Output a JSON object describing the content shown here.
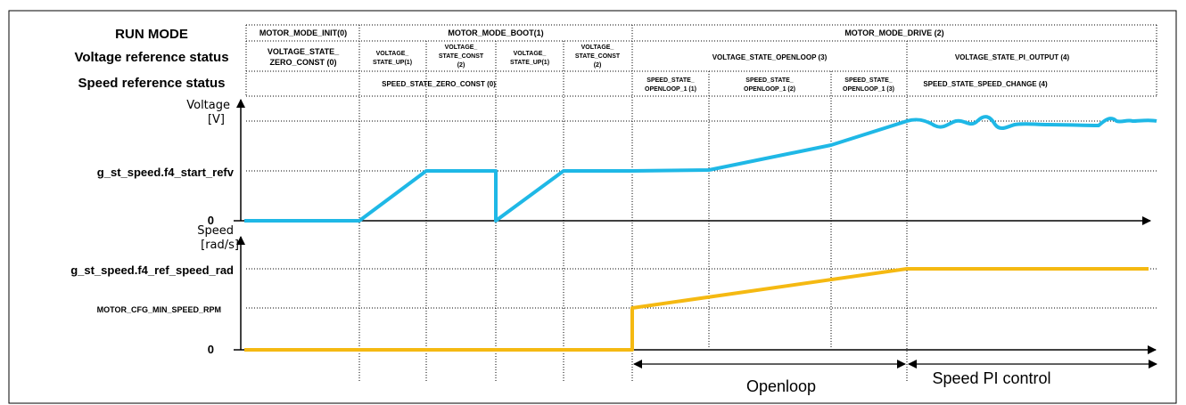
{
  "rows": {
    "run_mode": "RUN MODE",
    "voltage_ref_status": "Voltage reference status",
    "speed_ref_status": "Speed reference status"
  },
  "run_modes": [
    "MOTOR_MODE_INIT(0)",
    "MOTOR_MODE_BOOT(1)",
    "MOTOR_MODE_DRIVE (2)"
  ],
  "voltage_states": [
    [
      "VOLTAGE_STATE_",
      "ZERO_CONST (0)"
    ],
    [
      "VOLTAGE_",
      "STATE_UP(1)"
    ],
    [
      "VOLTAGE_",
      "STATE_CONST",
      "(2)"
    ],
    [
      "VOLTAGE_",
      "STATE_UP(1)"
    ],
    [
      "VOLTAGE_",
      "STATE_CONST",
      "(2)"
    ],
    [
      "VOLTAGE_STATE_OPENLOOP (3)"
    ],
    [
      "VOLTAGE_STATE_PI_OUTPUT (4)"
    ]
  ],
  "speed_states": [
    [
      "SPEED_STATE_ZERO_CONST (0)"
    ],
    [
      "SPEED_STATE_",
      "OPENLOOP_1 (1)"
    ],
    [
      "SPEED_STATE_",
      "OPENLOOP_1 (2)"
    ],
    [
      "SPEED_STATE_",
      "OPENLOOP_1 (3)"
    ],
    [
      "SPEED_STATE_SPEED_CHANGE (4)"
    ]
  ],
  "voltage_axis": {
    "name": "Voltage",
    "unit": "[V]",
    "level_label": "g_st_speed.f4_start_refv",
    "zero": "0"
  },
  "speed_axis": {
    "name": "Speed",
    "unit": "[rad/s]",
    "level_label": "g_st_speed.f4_ref_speed_rad",
    "min_label": "MOTOR_CFG_MIN_SPEED_RPM",
    "zero": "0"
  },
  "phases": [
    "Openloop",
    "Speed PI control"
  ],
  "colors": {
    "voltage_line": "#1fb8e6",
    "speed_line": "#f5b912",
    "grid": "#000000"
  }
}
